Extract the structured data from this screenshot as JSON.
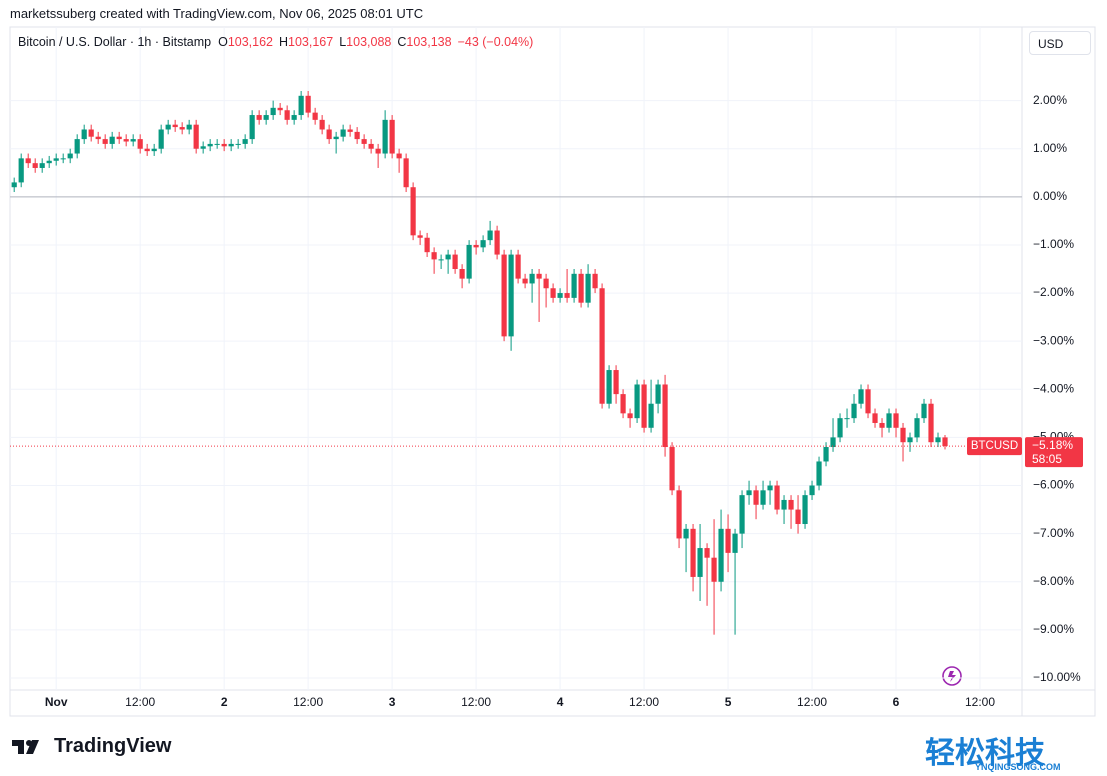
{
  "credit": "marketssuberg created with TradingView.com, Nov 06, 2025 08:01 UTC",
  "chart_data": {
    "type": "candlestick",
    "title": "Bitcoin / U.S. Dollar · 1h · Bitstamp",
    "ohlc": [
      {
        "key": "O",
        "value": "103,162"
      },
      {
        "key": "H",
        "value": "103,167"
      },
      {
        "key": "L",
        "value": "103,088"
      },
      {
        "key": "C",
        "value": "103,138"
      }
    ],
    "change": "−43 (−0.04%)",
    "unit": "USD",
    "up_color": "#089981",
    "down_color": "#f23645",
    "open": [
      0.2,
      0.3,
      0.8,
      0.7,
      0.6,
      0.7,
      0.75,
      0.8,
      0.8,
      0.9,
      1.2,
      1.4,
      1.25,
      1.2,
      1.1,
      1.25,
      1.2,
      1.15,
      1.2,
      1.0,
      0.95,
      1.0,
      1.4,
      1.5,
      1.45,
      1.4,
      1.5,
      1.0,
      1.05,
      1.1,
      1.1,
      1.05,
      1.1,
      1.1,
      1.2,
      1.7,
      1.6,
      1.7,
      1.85,
      1.8,
      1.6,
      1.7,
      2.1,
      1.75,
      1.6,
      1.4,
      1.2,
      1.25,
      1.4,
      1.35,
      1.2,
      1.1,
      1.0,
      0.9,
      1.6,
      0.9,
      0.8,
      0.2,
      -0.8,
      -0.85,
      -1.15,
      -1.3,
      -1.3,
      -1.2,
      -1.5,
      -1.7,
      -1.0,
      -1.05,
      -0.9,
      -0.7,
      -1.2,
      -2.9,
      -1.2,
      -1.7,
      -1.8,
      -1.6,
      -1.7,
      -1.9,
      -2.1,
      -2.0,
      -2.1,
      -1.6,
      -2.2,
      -1.6,
      -1.9,
      -4.3,
      -3.6,
      -4.1,
      -4.5,
      -4.6,
      -3.9,
      -4.8,
      -4.3,
      -3.9,
      -5.2,
      -6.1,
      -7.1,
      -6.9,
      -7.9,
      -7.3,
      -7.5,
      -8.0,
      -6.9,
      -7.4,
      -7.0,
      -6.2,
      -6.1,
      -6.4,
      -6.1,
      -6.0,
      -6.5,
      -6.3,
      -6.5,
      -6.8,
      -6.2,
      -6.0,
      -5.5,
      -5.2,
      -5.0,
      -4.6,
      -4.6,
      -4.3,
      -4.0,
      -4.5,
      -4.7,
      -4.8,
      -4.5,
      -4.8,
      -5.1,
      -5.0,
      -4.6,
      -4.3,
      -5.1,
      -5.0
    ],
    "high": [
      0.4,
      0.9,
      0.9,
      0.8,
      0.8,
      0.85,
      0.9,
      0.9,
      1.0,
      1.3,
      1.5,
      1.5,
      1.35,
      1.3,
      1.35,
      1.35,
      1.3,
      1.3,
      1.3,
      1.1,
      1.1,
      1.5,
      1.6,
      1.6,
      1.55,
      1.6,
      1.6,
      1.15,
      1.2,
      1.2,
      1.2,
      1.2,
      1.2,
      1.3,
      1.8,
      1.8,
      1.8,
      2.0,
      1.95,
      1.9,
      1.8,
      2.2,
      2.2,
      1.85,
      1.7,
      1.5,
      1.35,
      1.5,
      1.5,
      1.45,
      1.3,
      1.2,
      1.1,
      1.8,
      1.7,
      1.0,
      0.9,
      0.3,
      -0.7,
      -0.75,
      -1.05,
      -1.2,
      -1.1,
      -1.1,
      -1.4,
      -0.9,
      -0.9,
      -0.8,
      -0.5,
      -0.6,
      -1.1,
      -1.1,
      -1.1,
      -1.6,
      -1.5,
      -1.5,
      -1.6,
      -1.8,
      -1.9,
      -1.5,
      -1.5,
      -1.5,
      -1.4,
      -1.5,
      -1.8,
      -3.5,
      -3.5,
      -4.0,
      -4.4,
      -3.8,
      -3.8,
      -3.8,
      -3.8,
      -3.7,
      -5.1,
      -6.0,
      -6.8,
      -6.8,
      -6.8,
      -7.2,
      -6.7,
      -6.5,
      -6.6,
      -6.9,
      -6.1,
      -5.9,
      -6.0,
      -5.9,
      -5.9,
      -5.9,
      -6.2,
      -6.2,
      -6.2,
      -6.1,
      -5.9,
      -5.4,
      -5.1,
      -4.6,
      -4.5,
      -4.4,
      -4.1,
      -3.9,
      -3.9,
      -4.4,
      -4.6,
      -4.4,
      -4.4,
      -4.7,
      -4.9,
      -4.5,
      -4.2,
      -4.2,
      -4.9,
      -4.95
    ],
    "low": [
      0.1,
      0.2,
      0.6,
      0.5,
      0.5,
      0.6,
      0.65,
      0.7,
      0.7,
      0.8,
      1.1,
      1.15,
      1.1,
      1.0,
      1.0,
      1.1,
      1.05,
      1.05,
      0.9,
      0.85,
      0.85,
      0.9,
      1.3,
      1.35,
      1.3,
      1.3,
      0.9,
      0.9,
      0.95,
      1.0,
      0.95,
      0.95,
      1.0,
      1.0,
      1.1,
      1.5,
      1.5,
      1.6,
      1.7,
      1.5,
      1.5,
      1.6,
      1.65,
      1.5,
      1.3,
      1.1,
      0.9,
      1.15,
      1.25,
      1.1,
      1.0,
      0.9,
      0.6,
      0.8,
      0.8,
      0.5,
      0.1,
      -0.9,
      -1.0,
      -1.25,
      -1.6,
      -1.5,
      -1.6,
      -1.6,
      -1.9,
      -1.8,
      -1.2,
      -1.15,
      -1.0,
      -1.3,
      -3.0,
      -3.2,
      -1.8,
      -1.9,
      -2.2,
      -2.6,
      -2.3,
      -2.2,
      -2.2,
      -2.2,
      -2.2,
      -2.3,
      -2.3,
      -2.0,
      -4.4,
      -4.4,
      -4.3,
      -4.6,
      -4.8,
      -4.7,
      -4.9,
      -4.9,
      -4.5,
      -5.4,
      -6.2,
      -7.3,
      -7.8,
      -8.2,
      -8.4,
      -8.5,
      -9.1,
      -8.2,
      -7.8,
      -9.1,
      -7.3,
      -6.4,
      -6.7,
      -6.5,
      -6.4,
      -6.6,
      -6.8,
      -6.9,
      -7.0,
      -6.9,
      -6.3,
      -6.1,
      -5.6,
      -5.3,
      -5.1,
      -4.8,
      -4.7,
      -4.4,
      -4.6,
      -4.8,
      -5.0,
      -4.9,
      -5.0,
      -5.5,
      -5.3,
      -5.1,
      -4.7,
      -5.2,
      -5.2,
      -5.25
    ],
    "close": [
      0.3,
      0.8,
      0.7,
      0.6,
      0.7,
      0.75,
      0.8,
      0.8,
      0.9,
      1.2,
      1.4,
      1.25,
      1.2,
      1.1,
      1.25,
      1.2,
      1.15,
      1.2,
      1.0,
      0.95,
      1.0,
      1.4,
      1.5,
      1.45,
      1.4,
      1.5,
      1.0,
      1.05,
      1.1,
      1.1,
      1.05,
      1.1,
      1.1,
      1.2,
      1.7,
      1.6,
      1.7,
      1.85,
      1.8,
      1.6,
      1.7,
      2.1,
      1.75,
      1.6,
      1.4,
      1.2,
      1.25,
      1.4,
      1.35,
      1.2,
      1.1,
      1.0,
      0.9,
      1.6,
      0.9,
      0.8,
      0.2,
      -0.8,
      -0.85,
      -1.15,
      -1.3,
      -1.3,
      -1.2,
      -1.5,
      -1.7,
      -1.0,
      -1.05,
      -0.9,
      -0.7,
      -1.2,
      -2.9,
      -1.2,
      -1.7,
      -1.8,
      -1.6,
      -1.7,
      -1.9,
      -2.1,
      -2.0,
      -2.1,
      -1.6,
      -2.2,
      -1.6,
      -1.9,
      -4.3,
      -3.6,
      -4.1,
      -4.5,
      -4.6,
      -3.9,
      -4.8,
      -4.3,
      -3.9,
      -5.2,
      -6.1,
      -7.1,
      -6.9,
      -7.9,
      -7.3,
      -7.5,
      -8.0,
      -6.9,
      -7.4,
      -7.0,
      -6.2,
      -6.1,
      -6.4,
      -6.1,
      -6.0,
      -6.5,
      -6.3,
      -6.5,
      -6.8,
      -6.2,
      -6.0,
      -5.5,
      -5.2,
      -5.0,
      -4.6,
      -4.6,
      -4.3,
      -4.0,
      -4.5,
      -4.7,
      -4.8,
      -4.5,
      -4.8,
      -5.1,
      -5.0,
      -4.6,
      -4.3,
      -5.1,
      -5.0,
      -5.18
    ],
    "xlim": [
      -0.6,
      144
    ],
    "xticks": [
      {
        "value": 6,
        "label": "Nov"
      },
      {
        "value": 18,
        "label": "12:00"
      },
      {
        "value": 30,
        "label": "2"
      },
      {
        "value": 42,
        "label": "12:00"
      },
      {
        "value": 54,
        "label": "3"
      },
      {
        "value": 66,
        "label": "12:00"
      },
      {
        "value": 78,
        "label": "4"
      },
      {
        "value": 90,
        "label": "12:00"
      },
      {
        "value": 102,
        "label": "5"
      },
      {
        "value": 114,
        "label": "12:00"
      },
      {
        "value": 126,
        "label": "6"
      },
      {
        "value": 138,
        "label": "12:00"
      }
    ],
    "ylim": [
      -10.25,
      3.53
    ],
    "yticks": [
      {
        "value": 2,
        "label": "2.00%"
      },
      {
        "value": 1,
        "label": "1.00%"
      },
      {
        "value": 0,
        "label": "0.00%"
      },
      {
        "value": -1,
        "label": "−1.00%"
      },
      {
        "value": -2,
        "label": "−2.00%"
      },
      {
        "value": -3,
        "label": "−3.00%"
      },
      {
        "value": -4,
        "label": "−4.00%"
      },
      {
        "value": -5,
        "label": "−5.00%"
      },
      {
        "value": -6,
        "label": "−6.00%"
      },
      {
        "value": -7,
        "label": "−7.00%"
      },
      {
        "value": -8,
        "label": "−8.00%"
      },
      {
        "value": -9,
        "label": "−9.00%"
      },
      {
        "value": -10,
        "label": "−10.00%"
      }
    ],
    "baseline": 0,
    "grid": true,
    "last_symbol": "BTCUSD",
    "last_value": -5.18,
    "last_value_label": "−5.18%",
    "countdown": "58:05"
  },
  "brand": "TradingView",
  "watermark": "轻松科技",
  "watermark_url": "YNQINGSONG.COM"
}
